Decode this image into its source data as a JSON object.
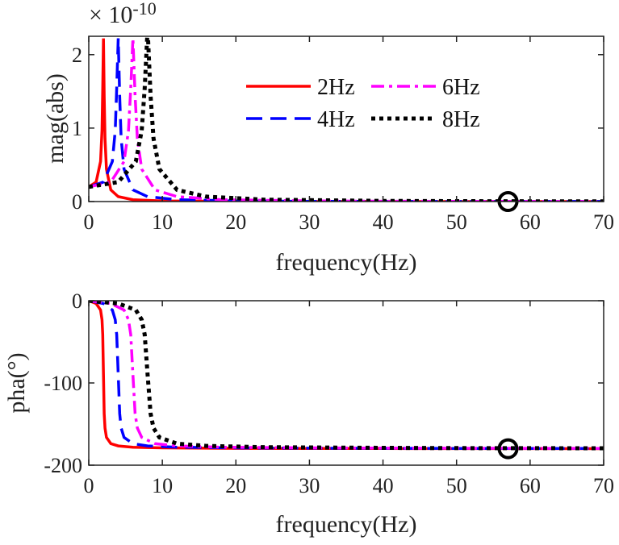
{
  "chart_data": [
    {
      "type": "line",
      "xlabel": "frequency(Hz)",
      "ylabel": "mag(abs)",
      "y_exponent_label": "× 10",
      "y_exponent_power": "-10",
      "xlim": [
        0,
        70
      ],
      "ylim": [
        0,
        2.25
      ],
      "xticks": [
        0,
        10,
        20,
        30,
        40,
        50,
        60,
        70
      ],
      "yticks": [
        0,
        1,
        2
      ],
      "grid": false,
      "legend_placement": "top-center",
      "series": [
        {
          "name": "2Hz",
          "color": "#ff0000",
          "style": "solid",
          "x": [
            0,
            1,
            1.6,
            1.8,
            1.9,
            2,
            2.1,
            2.2,
            2.4,
            3,
            4,
            6,
            10,
            20,
            40,
            70
          ],
          "y": [
            0.2,
            0.266,
            0.545,
            0.968,
            1.542,
            2.222,
            1.435,
            0.861,
            0.441,
            0.159,
            0.067,
            0.025,
            0.0083,
            0.002,
            0.0005,
            0.0002
          ]
        },
        {
          "name": "4Hz",
          "color": "#0000ff",
          "style": "dashed",
          "x": [
            0,
            2,
            3.2,
            3.6,
            3.8,
            4,
            4.2,
            4.4,
            4.8,
            6,
            8,
            12,
            20,
            30,
            50,
            70
          ],
          "y": [
            0.2,
            0.266,
            0.545,
            0.968,
            1.542,
            2.222,
            1.435,
            0.861,
            0.441,
            0.159,
            0.067,
            0.025,
            0.0083,
            0.0036,
            0.0013,
            0.00065
          ]
        },
        {
          "name": "6Hz",
          "color": "#ff00ff",
          "style": "dashdot",
          "x": [
            0,
            3,
            4.8,
            5.4,
            5.7,
            6,
            6.3,
            6.6,
            7.2,
            9,
            12,
            18,
            30,
            40,
            55,
            70
          ],
          "y": [
            0.2,
            0.266,
            0.545,
            0.968,
            1.542,
            2.222,
            1.435,
            0.861,
            0.441,
            0.159,
            0.067,
            0.025,
            0.0083,
            0.0046,
            0.0024,
            0.0015
          ]
        },
        {
          "name": "8Hz",
          "color": "#000000",
          "style": "dotted",
          "x": [
            0,
            4,
            6.4,
            7.2,
            7.6,
            8,
            8.4,
            8.8,
            9.6,
            12,
            16,
            24,
            40,
            50,
            60,
            70
          ],
          "y": [
            0.2,
            0.266,
            0.545,
            0.968,
            1.542,
            2.35,
            1.435,
            0.861,
            0.441,
            0.159,
            0.067,
            0.025,
            0.0083,
            0.0053,
            0.0036,
            0.0026
          ]
        }
      ],
      "annotations": [
        {
          "shape": "circle",
          "x": 57,
          "y": 0,
          "color": "#000000"
        }
      ]
    },
    {
      "type": "line",
      "xlabel": "frequency(Hz)",
      "ylabel": "pha(°)",
      "xlim": [
        0,
        70
      ],
      "ylim": [
        -200,
        0
      ],
      "xticks": [
        0,
        10,
        20,
        30,
        40,
        50,
        60,
        70
      ],
      "yticks": [
        -200,
        -100,
        0
      ],
      "grid": false,
      "series": [
        {
          "name": "2Hz",
          "color": "#ff0000",
          "style": "solid",
          "x": [
            0,
            1,
            1.6,
            1.8,
            1.9,
            2,
            2.1,
            2.2,
            2.4,
            3,
            4,
            6,
            10,
            20,
            40,
            70
          ],
          "y": [
            0,
            -3.4,
            -11.3,
            -23.1,
            -41.2,
            -90,
            -137.3,
            -154.8,
            -166.2,
            -173.8,
            -176.6,
            -178.1,
            -178.9,
            -179.5,
            -179.7,
            -179.9
          ]
        },
        {
          "name": "4Hz",
          "color": "#0000ff",
          "style": "dashed",
          "x": [
            0,
            2,
            3.2,
            3.6,
            3.8,
            4,
            4.2,
            4.4,
            4.8,
            6,
            8,
            12,
            20,
            30,
            50,
            70
          ],
          "y": [
            0,
            -3.4,
            -11.3,
            -23.1,
            -41.2,
            -90,
            -137.3,
            -154.8,
            -166.2,
            -173.8,
            -176.6,
            -178.1,
            -178.9,
            -179.3,
            -179.6,
            -179.7
          ]
        },
        {
          "name": "6Hz",
          "color": "#ff00ff",
          "style": "dashdot",
          "x": [
            0,
            3,
            4.8,
            5.4,
            5.7,
            6,
            6.3,
            6.6,
            7.2,
            9,
            12,
            18,
            30,
            40,
            55,
            70
          ],
          "y": [
            0,
            -3.4,
            -11.3,
            -23.1,
            -41.2,
            -90,
            -137.3,
            -154.8,
            -166.2,
            -173.8,
            -176.6,
            -178.1,
            -178.9,
            -179.2,
            -179.4,
            -179.6
          ]
        },
        {
          "name": "8Hz",
          "color": "#000000",
          "style": "dotted",
          "x": [
            0,
            4,
            6.4,
            7.2,
            7.6,
            8,
            8.4,
            8.8,
            9.6,
            12,
            16,
            24,
            40,
            50,
            60,
            70
          ],
          "y": [
            0,
            -3.4,
            -11.3,
            -23.1,
            -41.2,
            -90,
            -137.3,
            -154.8,
            -166.2,
            -173.8,
            -176.6,
            -178.1,
            -178.9,
            -179.2,
            -179.3,
            -179.4
          ]
        }
      ],
      "annotations": [
        {
          "shape": "circle",
          "x": 57,
          "y": -180,
          "color": "#000000"
        }
      ]
    }
  ]
}
